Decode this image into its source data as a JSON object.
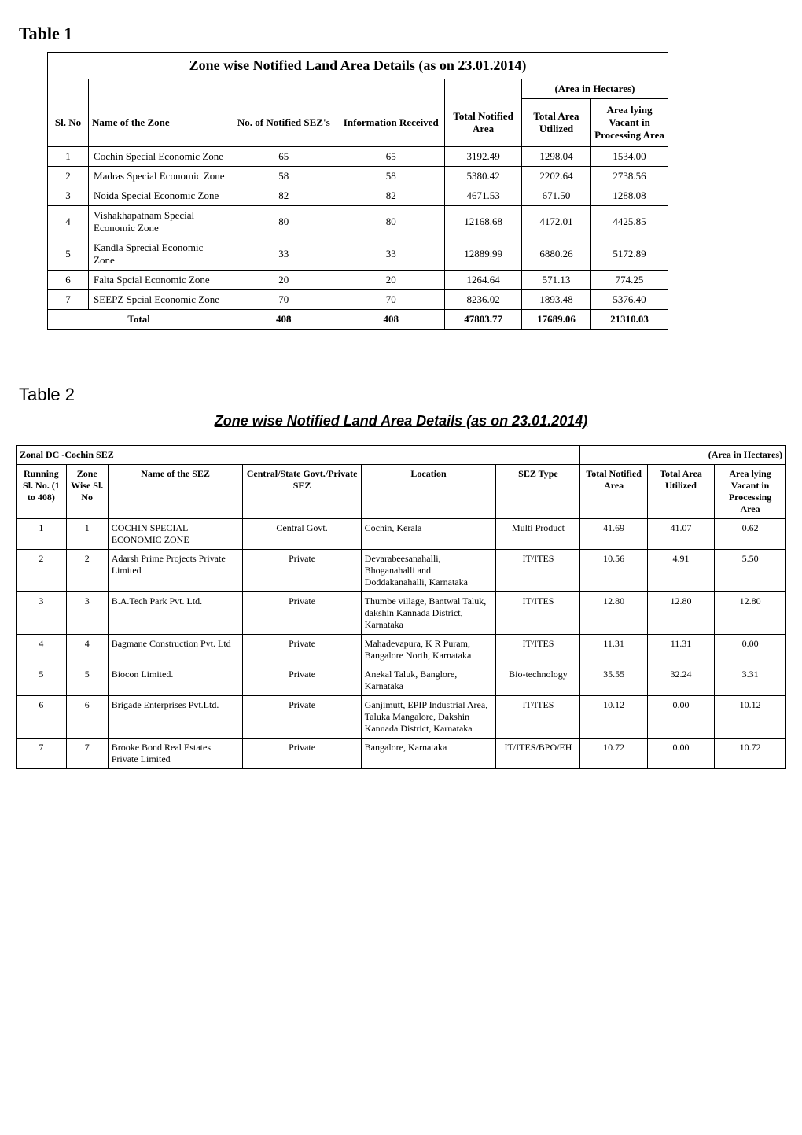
{
  "table1": {
    "heading": "Table 1",
    "title": "Zone wise Notified  Land Area Details (as on 23.01.2014)",
    "area_header": "(Area in Hectares)",
    "columns": {
      "slno": "Sl. No",
      "name": "Name of the Zone",
      "notified": "No. of Notified SEZ's",
      "info": "Information Received",
      "total_notified": "Total Notified Area",
      "total_utilized": "Total Area Utilized",
      "area_lying": "Area lying Vacant in Processing Area"
    },
    "rows": [
      {
        "sl": "1",
        "name": "Cochin Special Economic Zone",
        "notified": "65",
        "info": "65",
        "tn": "3192.49",
        "tu": "1298.04",
        "al": "1534.00"
      },
      {
        "sl": "2",
        "name": "Madras Special Economic Zone",
        "notified": "58",
        "info": "58",
        "tn": "5380.42",
        "tu": "2202.64",
        "al": "2738.56"
      },
      {
        "sl": "3",
        "name": "Noida Special Economic Zone",
        "notified": "82",
        "info": "82",
        "tn": "4671.53",
        "tu": "671.50",
        "al": "1288.08"
      },
      {
        "sl": "4",
        "name": "Vishakhapatnam Special Economic Zone",
        "notified": "80",
        "info": "80",
        "tn": "12168.68",
        "tu": "4172.01",
        "al": "4425.85"
      },
      {
        "sl": "5",
        "name": "Kandla Sprecial Economic Zone",
        "notified": "33",
        "info": "33",
        "tn": "12889.99",
        "tu": "6880.26",
        "al": "5172.89"
      },
      {
        "sl": "6",
        "name": "Falta Spcial Economic Zone",
        "notified": "20",
        "info": "20",
        "tn": "1264.64",
        "tu": "571.13",
        "al": "774.25"
      },
      {
        "sl": "7",
        "name": "SEEPZ Spcial Economic Zone",
        "notified": "70",
        "info": "70",
        "tn": "8236.02",
        "tu": "1893.48",
        "al": "5376.40"
      }
    ],
    "total": {
      "label": "Total",
      "notified": "408",
      "info": "408",
      "tn": "47803.77",
      "tu": "17689.06",
      "al": "21310.03"
    }
  },
  "table2": {
    "heading": "Table 2",
    "subtitle": " Zone wise Notified  Land Area Details (as on 23.01.2014)",
    "zonal_title": "Zonal DC -Cochin SEZ",
    "area_header": "(Area in Hectares)",
    "columns": {
      "running": "Running Sl. No. (1 to 408)",
      "zonewise": "Zone Wise Sl. No",
      "name": "Name of the SEZ",
      "cs": "Central/State Govt./Private SEZ",
      "loc": "Location",
      "type": "SEZ Type",
      "tn": "Total Notified Area",
      "tu": "Total Area Utilized",
      "al": "Area lying Vacant in Processing Area"
    },
    "rows": [
      {
        "r": "1",
        "z": "1",
        "name": "COCHIN SPECIAL ECONOMIC ZONE",
        "cs": "Central Govt.",
        "loc": "Cochin, Kerala",
        "type": "Multi Product",
        "tn": "41.69",
        "tu": "41.07",
        "al": "0.62"
      },
      {
        "r": "2",
        "z": "2",
        "name": "Adarsh Prime Projects Private Limited",
        "cs": "Private",
        "loc": "Devarabeesanahalli, Bhoganahalli and Doddakanahalli, Karnataka",
        "type": "IT/ITES",
        "tn": "10.56",
        "tu": "4.91",
        "al": "5.50"
      },
      {
        "r": "3",
        "z": "3",
        "name": "B.A.Tech Park Pvt. Ltd.",
        "cs": "Private",
        "loc": "Thumbe village, Bantwal Taluk, dakshin Kannada District, Karnataka",
        "type": "IT/ITES",
        "tn": "12.80",
        "tu": "12.80",
        "al": "12.80"
      },
      {
        "r": "4",
        "z": "4",
        "name": "Bagmane Construction Pvt. Ltd",
        "cs": "Private",
        "loc": "Mahadevapura, K R Puram, Bangalore North, Karnataka",
        "type": "IT/ITES",
        "tn": "11.31",
        "tu": "11.31",
        "al": "0.00"
      },
      {
        "r": "5",
        "z": "5",
        "name": "Biocon Limited.",
        "cs": "Private",
        "loc": "Anekal Taluk, Banglore, Karnataka",
        "type": "Bio-technology",
        "tn": "35.55",
        "tu": "32.24",
        "al": "3.31"
      },
      {
        "r": "6",
        "z": "6",
        "name": "Brigade Enterprises Pvt.Ltd.",
        "cs": "Private",
        "loc": "Ganjimutt, EPIP Industrial Area, Taluka Mangalore, Dakshin Kannada District, Karnataka",
        "type": "IT/ITES",
        "tn": "10.12",
        "tu": "0.00",
        "al": "10.12"
      },
      {
        "r": "7",
        "z": "7",
        "name": "Brooke Bond Real Estates Private Limited",
        "cs": "Private",
        "loc": "Bangalore, Karnataka",
        "type": "IT/ITES/BPO/EH",
        "tn": "10.72",
        "tu": "0.00",
        "al": "10.72"
      }
    ]
  }
}
